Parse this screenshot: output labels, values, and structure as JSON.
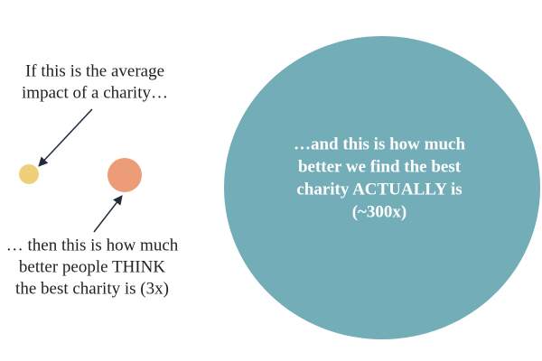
{
  "average_note": {
    "lines": [
      "If this is the average",
      "impact of a charity…"
    ]
  },
  "think_note": {
    "lines": [
      "… then this is how much",
      "better people THINK",
      "the best charity is (3x)"
    ]
  },
  "actual_note": {
    "lines": [
      "…and this is how much",
      "better we find the best",
      "charity ACTUALLY is",
      "(~300x)"
    ]
  }
}
